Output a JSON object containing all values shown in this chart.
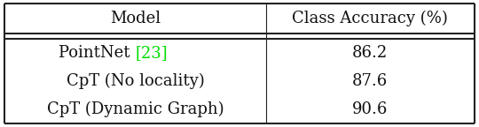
{
  "col_headers": [
    "Model",
    "Class Accuracy (%)"
  ],
  "rows": [
    {
      "model": "PointNet ",
      "citation": "[23]",
      "citation_color": "#00dd00",
      "accuracy": "86.2"
    },
    {
      "model": "CpT (No locality)",
      "citation": "",
      "citation_color": null,
      "accuracy": "87.6"
    },
    {
      "model": "CpT (Dynamic Graph)",
      "citation": "",
      "citation_color": null,
      "accuracy": "90.6"
    }
  ],
  "bg_color": "#ffffff",
  "text_color": "#111111",
  "border_color": "#222222",
  "font_size": 13,
  "header_font_size": 13,
  "col_split": 0.555,
  "figsize": [
    5.4,
    1.44
  ],
  "dpi": 100
}
